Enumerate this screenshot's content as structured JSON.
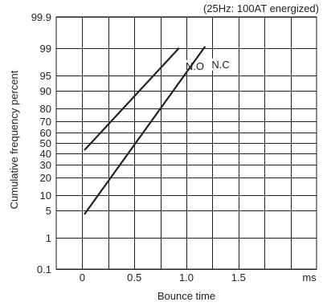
{
  "chart_data": {
    "type": "line",
    "note": "(25Hz: 100AT energized)",
    "xlabel": "Bounce time",
    "ylabel": "Cumulative frequency percent",
    "x_unit": "ms",
    "xlim": [
      -0.25,
      2.25
    ],
    "x_ticks": [
      0,
      0.5,
      1.0,
      1.5
    ],
    "x_tick_labels": [
      "0",
      "0.5",
      "1.0",
      "1.5"
    ],
    "y_scale": "probability",
    "ylim": [
      0.1,
      99.9
    ],
    "y_ticks": [
      0.1,
      1,
      5,
      10,
      20,
      30,
      40,
      50,
      60,
      70,
      80,
      90,
      95,
      99,
      99.9
    ],
    "y_tick_labels": [
      "0.1",
      "1",
      "5",
      "10",
      "20",
      "30",
      "40",
      "50",
      "60",
      "70",
      "80",
      "90",
      "95",
      "99",
      "99.9"
    ],
    "grid": true,
    "series": [
      {
        "name": "N.O",
        "x": [
          0.02,
          0.93
        ],
        "y": [
          43,
          99
        ]
      },
      {
        "name": "N.C",
        "x": [
          0.02,
          1.18
        ],
        "y": [
          4,
          99.1
        ]
      }
    ]
  }
}
